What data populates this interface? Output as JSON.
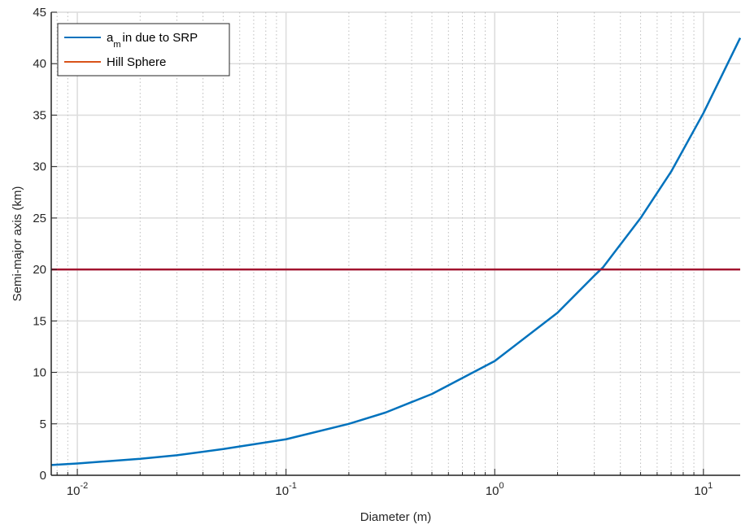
{
  "chart_data": {
    "type": "line",
    "xscale": "log",
    "xlim": [
      0.0075,
      15
    ],
    "ylim": [
      0,
      45
    ],
    "xlabel": "Diameter (m)",
    "ylabel": "Semi-major axis (km)",
    "grid": true,
    "legend_position": "top-left",
    "x_ticks": [
      {
        "value": 0.01,
        "base": "10",
        "exp": "-2"
      },
      {
        "value": 0.1,
        "base": "10",
        "exp": "-1"
      },
      {
        "value": 1,
        "base": "10",
        "exp": "0"
      },
      {
        "value": 10,
        "base": "10",
        "exp": "1"
      }
    ],
    "y_ticks": [
      0,
      5,
      10,
      15,
      20,
      25,
      30,
      35,
      40,
      45
    ],
    "series": [
      {
        "name_main": "a",
        "name_sub": "m",
        "name_rest": "in due to SRP",
        "color": "#0072BD",
        "x": [
          0.0075,
          0.01,
          0.02,
          0.03,
          0.05,
          0.1,
          0.2,
          0.3,
          0.5,
          1,
          2,
          3,
          3.3,
          5,
          7,
          10,
          15
        ],
        "y": [
          1.0,
          1.15,
          1.6,
          1.95,
          2.55,
          3.5,
          5.0,
          6.1,
          7.9,
          11.1,
          15.8,
          19.4,
          20.2,
          25.0,
          29.5,
          35.2,
          42.5
        ]
      },
      {
        "name": "Hill Sphere",
        "color": "#D95319",
        "plot_color": "#A2142F",
        "x": [
          0.0075,
          15
        ],
        "y": [
          20,
          20
        ]
      }
    ]
  }
}
